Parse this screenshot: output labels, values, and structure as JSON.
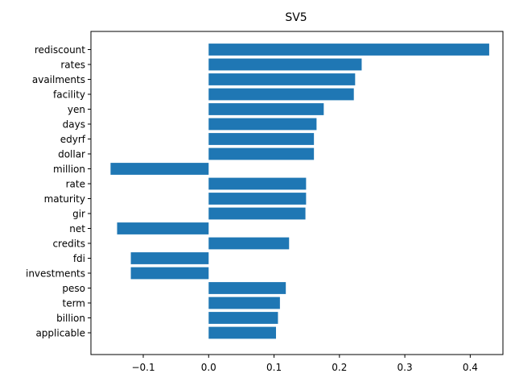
{
  "chart_data": {
    "type": "bar",
    "orientation": "horizontal",
    "title": "SV5",
    "xlabel": "",
    "ylabel": "",
    "xlim": [
      -0.18,
      0.45
    ],
    "xticks": [
      -0.1,
      0.0,
      0.1,
      0.2,
      0.3,
      0.4
    ],
    "xtick_labels": [
      "−0.1",
      "0.0",
      "0.1",
      "0.2",
      "0.3",
      "0.4"
    ],
    "grid": false,
    "bar_color": "#1f77b4",
    "categories": [
      "rediscount",
      "rates",
      "availments",
      "facility",
      "yen",
      "days",
      "edyrf",
      "dollar",
      "million",
      "rate",
      "maturity",
      "gir",
      "net",
      "credits",
      "fdi",
      "investments",
      "peso",
      "term",
      "billion",
      "applicable"
    ],
    "values": [
      0.429,
      0.234,
      0.224,
      0.222,
      0.176,
      0.165,
      0.161,
      0.161,
      -0.15,
      0.149,
      0.149,
      0.148,
      -0.14,
      0.123,
      -0.119,
      -0.119,
      0.118,
      0.109,
      0.106,
      0.103
    ]
  }
}
